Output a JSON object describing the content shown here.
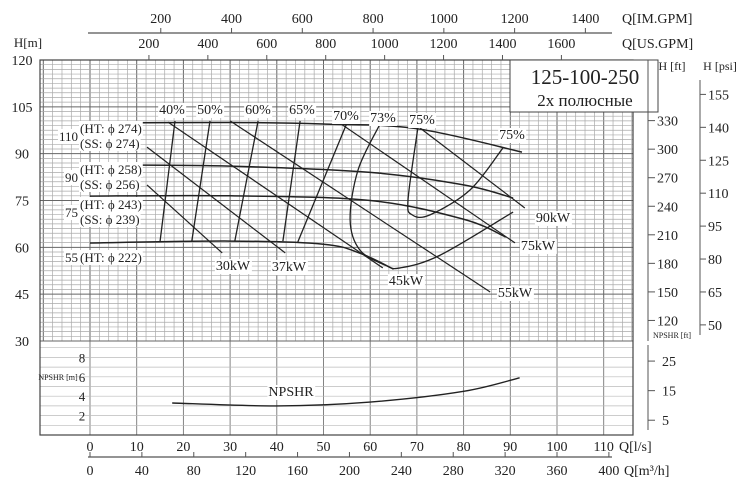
{
  "chart_data": {
    "type": "line",
    "title": "125-100-250",
    "subtitle": "2x  полюсные",
    "xlabel": "Q[l/s]",
    "xlabel_m3h": "Q[m³/h]",
    "xlabel_us": "Q[US.GPM]",
    "xlabel_im": "Q[IM.GPM]",
    "ylabel": "H[m]",
    "ylabel_ft": "H [ft]",
    "ylabel_psi": "H [psi]",
    "npsh_label": "NPSHR [m]",
    "npsh_ft_label": "NPSHR [ft]",
    "xlim": [
      0,
      110
    ],
    "ylim": [
      30,
      120
    ],
    "x_ticks": [
      0,
      10,
      20,
      30,
      40,
      50,
      60,
      70,
      80,
      90,
      100,
      110
    ],
    "m3h_ticks": [
      0,
      40,
      80,
      120,
      160,
      200,
      240,
      280,
      320,
      360,
      400
    ],
    "us_gpm_ticks": [
      200,
      400,
      600,
      800,
      1000,
      1200,
      1400,
      1600
    ],
    "im_gpm_ticks": [
      200,
      400,
      600,
      800,
      1000,
      1200,
      1400
    ],
    "y_ticks": [
      120,
      105,
      90,
      75,
      60,
      45,
      30
    ],
    "ft_ticks": [
      330,
      300,
      270,
      240,
      210,
      180,
      150,
      120
    ],
    "psi_ticks": [
      155,
      140,
      125,
      110,
      95,
      80,
      65,
      50
    ],
    "npsh_ticks": [
      8,
      6,
      4,
      2
    ],
    "npsh_ft_ticks": [
      25,
      15,
      5
    ],
    "head_curves": [
      {
        "name": "110",
        "l1": "(HT: ϕ 274)",
        "l2": "(SS: ϕ 274)",
        "points": [
          [
            0,
            99.8
          ],
          [
            30,
            100
          ],
          [
            50,
            99.5
          ],
          [
            70,
            98
          ],
          [
            92.5,
            90.5
          ]
        ]
      },
      {
        "name": "90",
        "l1": "(HT: ϕ 258)",
        "l2": "(SS: ϕ 256)",
        "points": [
          [
            0,
            86.4
          ],
          [
            30,
            86
          ],
          [
            60,
            84
          ],
          [
            80,
            80
          ],
          [
            90.6,
            75.8
          ]
        ]
      },
      {
        "name": "75",
        "l1": "(HT: ϕ 243)",
        "l2": "(SS: ϕ 239)",
        "points": [
          [
            0,
            76.4
          ],
          [
            30,
            76.5
          ],
          [
            60,
            75
          ],
          [
            80,
            69
          ],
          [
            89,
            63.3
          ]
        ]
      },
      {
        "name": "55",
        "l1": "(HT: ϕ 222)",
        "l2": "",
        "points": [
          [
            0,
            61.4
          ],
          [
            30,
            62
          ],
          [
            50,
            61
          ],
          [
            58,
            58
          ],
          [
            65,
            53
          ]
        ]
      }
    ],
    "efficiency_curves": [
      {
        "name": "40%",
        "points": [
          [
            18.2,
            100.5
          ],
          [
            15,
            62
          ]
        ]
      },
      {
        "name": "50%",
        "points": [
          [
            25.7,
            100.5
          ],
          [
            21.8,
            62
          ]
        ]
      },
      {
        "name": "60%",
        "points": [
          [
            36,
            100.5
          ],
          [
            31,
            62
          ]
        ]
      },
      {
        "name": "65%",
        "points": [
          [
            45,
            100.5
          ],
          [
            41.3,
            62
          ]
        ]
      },
      {
        "name": "70%",
        "points": [
          [
            55,
            99.8
          ],
          [
            44.5,
            61.7
          ]
        ]
      },
      {
        "name": "73%",
        "points": [
          [
            62,
            99.2
          ],
          [
            57.4,
            84.8
          ],
          [
            55.7,
            68.8
          ],
          [
            57.8,
            59.1
          ],
          [
            63.2,
            54.3
          ],
          [
            66.4,
            53.4
          ],
          [
            75,
            57.5
          ],
          [
            90.6,
            71.3
          ]
        ]
      },
      {
        "name": "75%",
        "points": [
          [
            70.2,
            98.2
          ],
          [
            68.1,
            75.2
          ],
          [
            69,
            70.4
          ],
          [
            72.8,
            70.4
          ],
          [
            81.4,
            78.4
          ],
          [
            88.4,
            91.8
          ]
        ]
      }
    ],
    "efficiency_label_extra": "75%",
    "power_lines": [
      {
        "name": "30kW",
        "points": [
          [
            12.2,
            80
          ],
          [
            28.3,
            58.2
          ]
        ]
      },
      {
        "name": "37kW",
        "points": [
          [
            12.2,
            92.1
          ],
          [
            41.8,
            58.2
          ]
        ]
      },
      {
        "name": "45kW",
        "points": [
          [
            16.7,
            100.1
          ],
          [
            62.7,
            53.4
          ]
        ]
      },
      {
        "name": "55kW",
        "points": [
          [
            30,
            100.5
          ],
          [
            85.7,
            45.7
          ]
        ]
      },
      {
        "name": "75kW",
        "points": [
          [
            53.5,
            99.8
          ],
          [
            91,
            61.4
          ]
        ]
      },
      {
        "name": "90kW",
        "points": [
          [
            70.7,
            98.2
          ],
          [
            93.1,
            72.6
          ]
        ]
      }
    ],
    "npshr": {
      "name": "NPSHR",
      "points": [
        [
          17.6,
          3.3
        ],
        [
          40,
          3.0
        ],
        [
          60,
          3.4
        ],
        [
          80,
          4.5
        ],
        [
          92,
          5.9
        ]
      ]
    }
  }
}
